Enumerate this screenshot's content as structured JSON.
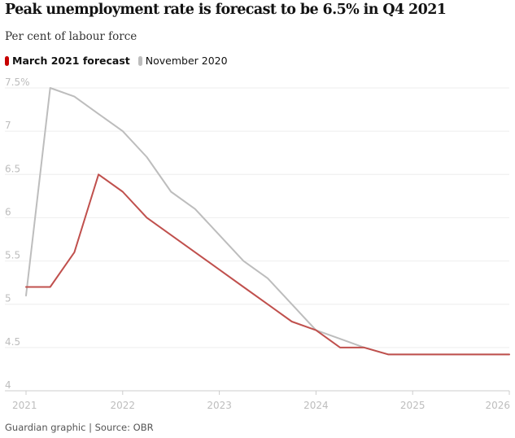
{
  "header": {
    "title": "Peak unemployment rate is forecast to be 6.5% in Q4 2021",
    "subtitle": "Per cent of labour force"
  },
  "legend": [
    {
      "label": "March 2021 forecast",
      "color": "#c70000",
      "bold": true
    },
    {
      "label": "November 2020",
      "color": "#bdbdbd",
      "bold": false
    }
  ],
  "footer": {
    "source": "Guardian graphic | Source: OBR"
  },
  "chart_data": {
    "type": "line",
    "title": "Peak unemployment rate is forecast to be 6.5% in Q4 2021",
    "subtitle": "Per cent of labour force",
    "ylabel": "",
    "xlabel": "",
    "xlim": [
      2021,
      2026
    ],
    "ylim": [
      4,
      7.5
    ],
    "x_ticks": [
      2021,
      2022,
      2023,
      2024,
      2025,
      2026
    ],
    "x_tick_labels": [
      "2021",
      "2022",
      "2023",
      "2024",
      "2025",
      "2026"
    ],
    "y_ticks": [
      4,
      4.5,
      5,
      5.5,
      6,
      6.5,
      7,
      7.5
    ],
    "y_tick_labels": [
      "4",
      "4.5",
      "5",
      "5.5",
      "6",
      "6.5",
      "7",
      "7.5%"
    ],
    "grid": true,
    "legend_position": "top-left",
    "series": [
      {
        "name": "March 2021 forecast",
        "color": "#c0504d",
        "x": [
          2021.0,
          2021.25,
          2021.5,
          2021.75,
          2022.0,
          2022.25,
          2022.5,
          2022.75,
          2023.0,
          2023.25,
          2023.5,
          2023.75,
          2024.0,
          2024.25,
          2024.5,
          2024.75,
          2025.0,
          2025.25,
          2025.5,
          2025.75,
          2026.0
        ],
        "y": [
          5.2,
          5.2,
          5.6,
          6.5,
          6.3,
          6.0,
          5.8,
          5.6,
          5.4,
          5.2,
          5.0,
          4.8,
          4.7,
          4.5,
          4.5,
          4.42,
          4.42,
          4.42,
          4.42,
          4.42,
          4.42
        ]
      },
      {
        "name": "November 2020",
        "color": "#bdbdbd",
        "x": [
          2021.0,
          2021.25,
          2021.5,
          2021.75,
          2022.0,
          2022.25,
          2022.5,
          2022.75,
          2023.0,
          2023.25,
          2023.5,
          2023.75,
          2024.0,
          2024.25,
          2024.5,
          2024.75,
          2025.0,
          2025.25,
          2025.5,
          2025.75,
          2026.0
        ],
        "y": [
          5.1,
          7.5,
          7.4,
          7.2,
          7.0,
          6.7,
          6.3,
          6.1,
          5.8,
          5.5,
          5.3,
          5.0,
          4.7,
          4.6,
          4.5,
          4.42,
          4.42,
          4.42,
          4.42,
          4.42,
          4.42
        ]
      }
    ]
  }
}
